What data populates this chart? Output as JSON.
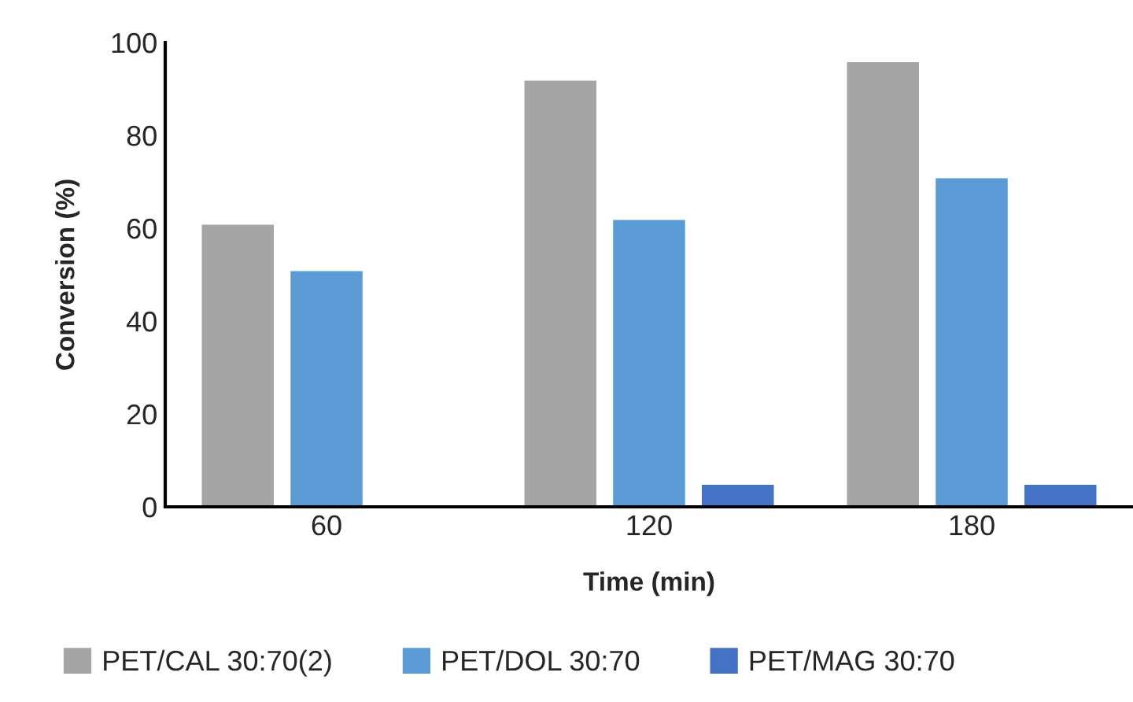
{
  "chart_data": {
    "type": "bar",
    "xlabel": "Time (min)",
    "ylabel": "Conversion (%)",
    "categories": [
      "60",
      "120",
      "180"
    ],
    "series": [
      {
        "name": "PET/CAL 30:70(2)",
        "color": "#a5a5a5",
        "values": [
          61,
          92,
          96
        ]
      },
      {
        "name": "PET/DOL 30:70",
        "color": "#5b9bd5",
        "values": [
          51,
          62,
          71
        ]
      },
      {
        "name": "PET/MAG 30:70",
        "color": "#4472c4",
        "values": [
          null,
          5,
          5
        ]
      }
    ],
    "ylim": [
      0,
      100
    ],
    "yticks": [
      0,
      20,
      40,
      60,
      80,
      100
    ],
    "grid": false,
    "legend": "bottom"
  }
}
